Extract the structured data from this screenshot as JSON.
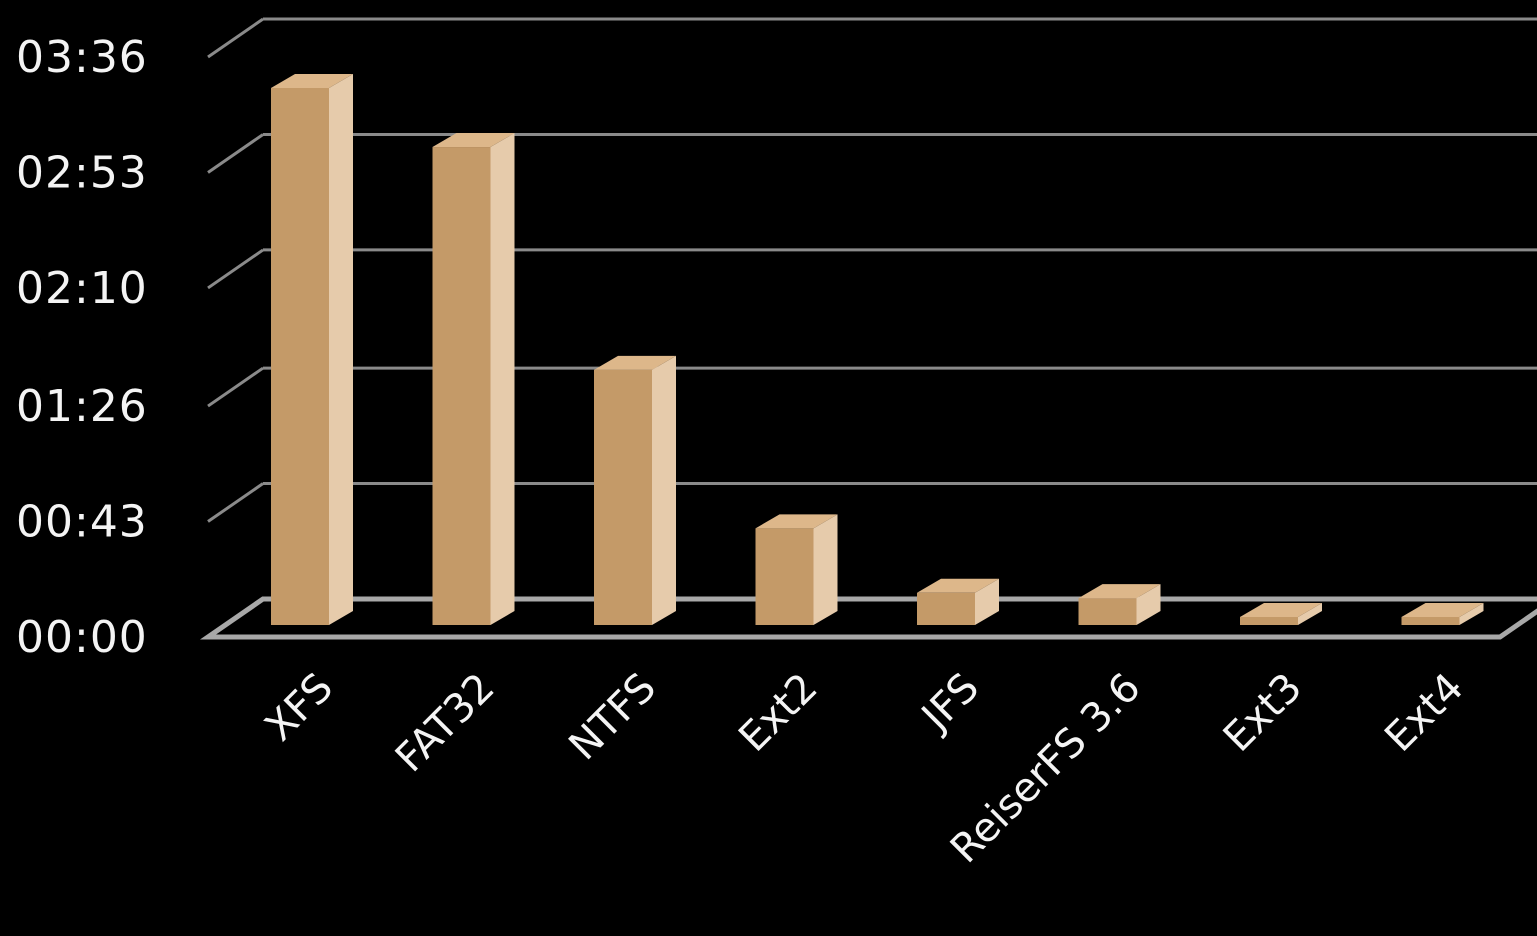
{
  "chart_data": {
    "type": "bar",
    "style": "3d",
    "title": "",
    "xlabel": "",
    "ylabel": "",
    "categories": [
      "XFS",
      "FAT32",
      "NTFS",
      "Ext2",
      "JFS",
      "ReiserFS 3.6",
      "Ext3",
      "Ext4"
    ],
    "values_seconds": [
      200,
      178,
      95,
      36,
      12,
      10,
      3,
      3
    ],
    "ylim_seconds": [
      0,
      215
    ],
    "yticks_seconds": [
      0,
      43,
      86,
      130,
      173,
      216
    ],
    "ytick_labels": [
      "00:00",
      "00:43",
      "01:26",
      "02:10",
      "02:53",
      "03:36"
    ],
    "grid": true,
    "legend": "none",
    "colors": {
      "background": "#000000",
      "bar_front": "#c49a68",
      "bar_side": "#e6cbab",
      "bar_top": "#ddb78a",
      "grid": "#8a8a8a",
      "floor": "#a8a8a8",
      "text": "#f4f4f4"
    }
  }
}
